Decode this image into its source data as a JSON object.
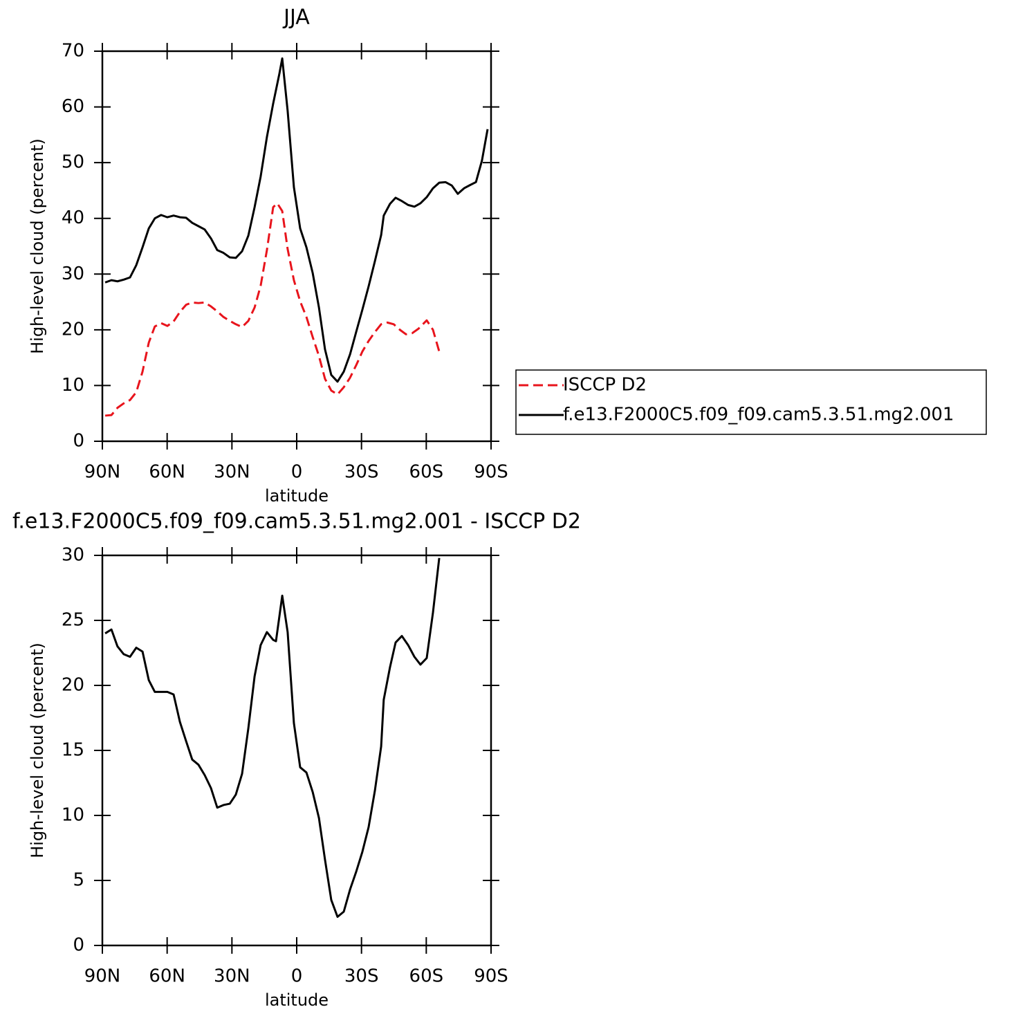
{
  "chart_data": [
    {
      "type": "line",
      "title": "JJA",
      "xlabel": "latitude",
      "ylabel": "High-level cloud (percent)",
      "xlim": [
        90,
        -90
      ],
      "xticks": [
        {
          "value": 90,
          "label": "90N"
        },
        {
          "value": 60,
          "label": "60N"
        },
        {
          "value": 30,
          "label": "30N"
        },
        0,
        {
          "value": -30,
          "label": "30S"
        },
        {
          "value": -60,
          "label": "60S"
        },
        {
          "value": -90,
          "label": "90S"
        }
      ],
      "ylim": [
        0,
        70
      ],
      "yticks": [
        0,
        10,
        20,
        30,
        40,
        50,
        60,
        70
      ],
      "legend": "right",
      "series": [
        {
          "name": "ISCCP D2",
          "color": "#e8141c",
          "dash": true,
          "x": [
            88.7,
            85.8,
            83,
            80.1,
            77.2,
            74.3,
            71.4,
            68.5,
            65.7,
            62.8,
            59.9,
            57,
            54.1,
            51.2,
            48.4,
            45.5,
            42.6,
            39.7,
            36.8,
            33.9,
            31,
            28.2,
            25.3,
            22.4,
            19.5,
            16.7,
            13.8,
            10.9,
            9,
            6.7,
            4.2,
            1.3,
            -1.6,
            -4.5,
            -7.4,
            -10.3,
            -13.1,
            -16,
            -18.9,
            -21.8,
            -24.7,
            -27.6,
            -30.4,
            -33.3,
            -36.2,
            -39.1,
            -42,
            -44.9,
            -47.8,
            -50.6,
            -53.5,
            -56.4,
            -60.2,
            -63.1,
            -66
          ],
          "values": [
            4.6,
            4.7,
            6.0,
            6.8,
            7.4,
            8.8,
            12.5,
            17.7,
            20.6,
            21.2,
            20.7,
            21.5,
            23.2,
            24.5,
            24.9,
            24.8,
            24.9,
            24.2,
            23.3,
            22.3,
            21.6,
            21.0,
            20.5,
            21.6,
            24.0,
            27.9,
            34.3,
            42.0,
            42.7,
            41.3,
            34.5,
            28.9,
            25.1,
            22.3,
            18.7,
            15.3,
            11.2,
            9.1,
            8.4,
            9.7,
            11.4,
            13.7,
            16.1,
            18.0,
            19.6,
            21.0,
            21.3,
            21.0,
            20.0,
            19.2,
            19.4,
            20.2,
            21.7,
            20.0,
            16.1
          ]
        },
        {
          "name": "f.e13.F2000C5.f09_f09.cam5.3.51.mg2.001",
          "color": "#000000",
          "dash": false,
          "x": [
            88.7,
            85.8,
            83,
            80.1,
            77.2,
            74.3,
            71.4,
            68.5,
            65.7,
            62.8,
            59.9,
            57,
            54.1,
            51.2,
            48.4,
            45.5,
            42.6,
            39.7,
            36.8,
            33.9,
            31,
            28.2,
            25.3,
            22.4,
            19.5,
            16.7,
            13.8,
            10.9,
            8.0,
            6.7,
            4.2,
            1.3,
            -1.6,
            -4.5,
            -7.4,
            -10.3,
            -13.1,
            -16,
            -18.9,
            -21.8,
            -24.7,
            -27.6,
            -30.4,
            -33.3,
            -36.2,
            -39.1,
            -40.3,
            -43.2,
            -45.8,
            -48.7,
            -51.6,
            -54.5,
            -57.3,
            -60.2,
            -63.1,
            -66,
            -68.9,
            -71.8,
            -74.6,
            -77.5,
            -80.4,
            -83,
            -85.8,
            -88.4
          ],
          "values": [
            28.5,
            28.9,
            28.7,
            29.0,
            29.4,
            31.6,
            34.8,
            38.2,
            40.0,
            40.6,
            40.2,
            40.5,
            40.2,
            40.1,
            39.2,
            38.6,
            38.0,
            36.4,
            34.3,
            33.8,
            33.0,
            32.9,
            34.1,
            36.9,
            42.0,
            47.5,
            54.6,
            60.6,
            66.0,
            68.7,
            59.3,
            45.6,
            38.2,
            34.8,
            30.2,
            24.0,
            16.5,
            11.9,
            10.7,
            12.5,
            15.6,
            19.7,
            23.6,
            27.8,
            32.3,
            37.0,
            40.5,
            42.6,
            43.7,
            43.1,
            42.4,
            42.1,
            42.7,
            43.8,
            45.4,
            46.4,
            46.5,
            45.9,
            44.4,
            45.4,
            46.0,
            46.5,
            50.4,
            56.0
          ]
        }
      ]
    },
    {
      "type": "line",
      "title": "f.e13.F2000C5.f09_f09.cam5.3.51.mg2.001 - ISCCP D2",
      "xlabel": "latitude",
      "ylabel": "High-level cloud (percent)",
      "xlim": [
        90,
        -90
      ],
      "xticks": [
        {
          "value": 90,
          "label": "90N"
        },
        {
          "value": 60,
          "label": "60N"
        },
        {
          "value": 30,
          "label": "30N"
        },
        0,
        {
          "value": -30,
          "label": "30S"
        },
        {
          "value": -60,
          "label": "60S"
        },
        {
          "value": -90,
          "label": "90S"
        }
      ],
      "ylim": [
        0,
        30
      ],
      "yticks": [
        0,
        5,
        10,
        15,
        20,
        25,
        30
      ],
      "series": [
        {
          "color": "#000000",
          "dash": false,
          "x": [
            88.7,
            85.8,
            83,
            80.1,
            77.2,
            74.3,
            71.4,
            68.5,
            65.7,
            59.9,
            57,
            54.1,
            51.2,
            48.4,
            45.5,
            42.6,
            39.7,
            36.8,
            33.9,
            31,
            28.2,
            25.3,
            22.4,
            19.5,
            16.7,
            13.8,
            10.9,
            9.6,
            6.7,
            4.2,
            1.3,
            -1.6,
            -4.5,
            -7.4,
            -10.3,
            -13.1,
            -16,
            -18.9,
            -21.8,
            -24.7,
            -27.6,
            -30.4,
            -33.3,
            -36.2,
            -39.1,
            -40.3,
            -43.2,
            -45.8,
            -48.7,
            -51.6,
            -54.5,
            -57.3,
            -60.2,
            -63.1,
            -66
          ],
          "values": [
            24.0,
            24.3,
            23.0,
            22.4,
            22.2,
            22.9,
            22.6,
            20.4,
            19.5,
            19.5,
            19.3,
            17.2,
            15.7,
            14.3,
            13.9,
            13.1,
            12.1,
            10.6,
            10.8,
            10.9,
            11.6,
            13.2,
            16.7,
            20.7,
            23.1,
            24.1,
            23.5,
            23.4,
            26.9,
            24.1,
            17.1,
            13.7,
            13.3,
            11.8,
            9.8,
            6.6,
            3.5,
            2.2,
            2.6,
            4.3,
            5.7,
            7.2,
            9.1,
            11.9,
            15.3,
            18.9,
            21.4,
            23.3,
            23.8,
            23.1,
            22.2,
            21.6,
            22.1,
            25.6,
            29.8
          ]
        }
      ]
    }
  ]
}
